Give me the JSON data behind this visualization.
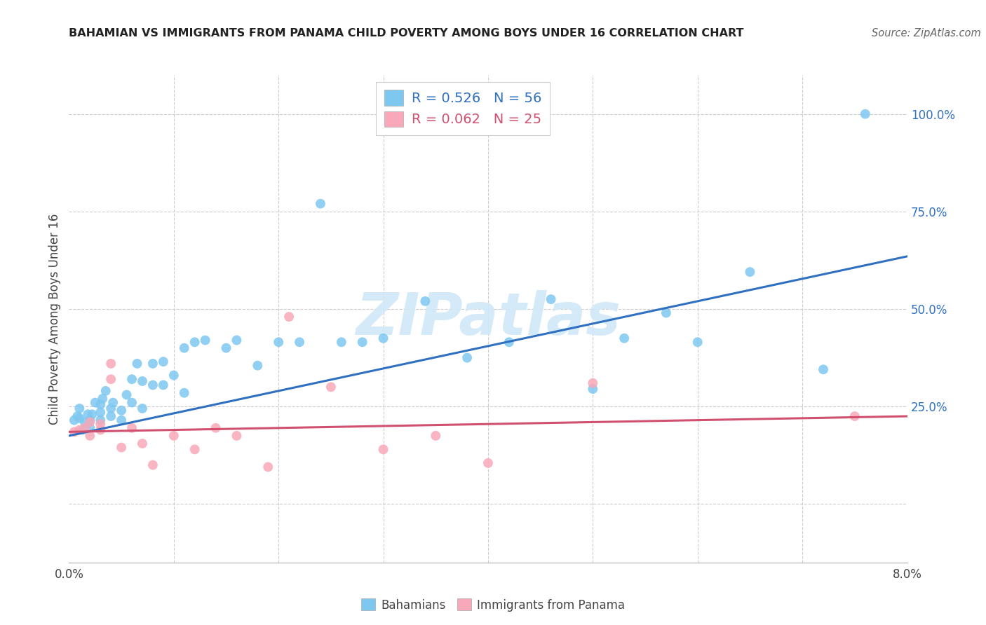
{
  "title": "BAHAMIAN VS IMMIGRANTS FROM PANAMA CHILD POVERTY AMONG BOYS UNDER 16 CORRELATION CHART",
  "source": "Source: ZipAtlas.com",
  "ylabel": "Child Poverty Among Boys Under 16",
  "color_blue": "#7EC8F0",
  "color_pink": "#F8A8B8",
  "trendline_blue": "#3070C0",
  "trendline_pink": "#D05070",
  "legend_label_blue": "R = 0.526   N = 56",
  "legend_label_pink": "R = 0.062   N = 25",
  "legend_text_blue": "#3070C0",
  "legend_text_pink": "#D05070",
  "watermark_color": "#D0E8F8",
  "xlim": [
    0.0,
    0.08
  ],
  "ylim": [
    -0.15,
    1.1
  ],
  "yticks": [
    0.0,
    0.25,
    0.5,
    0.75,
    1.0
  ],
  "ytick_labels": [
    "",
    "25.0%",
    "50.0%",
    "75.0%",
    "100.0%"
  ],
  "xtick_labels_show": [
    "0.0%",
    "8.0%"
  ],
  "trendline_blue_y0": 0.175,
  "trendline_blue_y1": 0.635,
  "trendline_pink_y0": 0.185,
  "trendline_pink_y1": 0.225,
  "bahamians_x": [
    0.0005,
    0.0008,
    0.001,
    0.001,
    0.0013,
    0.0015,
    0.0018,
    0.002,
    0.002,
    0.0022,
    0.0025,
    0.003,
    0.003,
    0.003,
    0.0032,
    0.0035,
    0.004,
    0.004,
    0.0042,
    0.005,
    0.005,
    0.0055,
    0.006,
    0.006,
    0.0065,
    0.007,
    0.007,
    0.008,
    0.008,
    0.009,
    0.009,
    0.01,
    0.011,
    0.011,
    0.012,
    0.013,
    0.015,
    0.016,
    0.018,
    0.02,
    0.022,
    0.024,
    0.026,
    0.028,
    0.03,
    0.034,
    0.038,
    0.042,
    0.046,
    0.05,
    0.053,
    0.057,
    0.06,
    0.065,
    0.072,
    0.076
  ],
  "bahamians_y": [
    0.215,
    0.225,
    0.22,
    0.245,
    0.19,
    0.21,
    0.23,
    0.195,
    0.215,
    0.23,
    0.26,
    0.215,
    0.235,
    0.255,
    0.27,
    0.29,
    0.225,
    0.245,
    0.26,
    0.215,
    0.24,
    0.28,
    0.26,
    0.32,
    0.36,
    0.245,
    0.315,
    0.305,
    0.36,
    0.305,
    0.365,
    0.33,
    0.4,
    0.285,
    0.415,
    0.42,
    0.4,
    0.42,
    0.355,
    0.415,
    0.415,
    0.77,
    0.415,
    0.415,
    0.425,
    0.52,
    0.375,
    0.415,
    0.525,
    0.295,
    0.425,
    0.49,
    0.415,
    0.595,
    0.345,
    1.0
  ],
  "panama_x": [
    0.0005,
    0.001,
    0.0015,
    0.002,
    0.002,
    0.003,
    0.003,
    0.004,
    0.004,
    0.005,
    0.006,
    0.007,
    0.008,
    0.01,
    0.012,
    0.014,
    0.016,
    0.019,
    0.021,
    0.025,
    0.03,
    0.035,
    0.04,
    0.05,
    0.075
  ],
  "panama_y": [
    0.185,
    0.19,
    0.195,
    0.175,
    0.21,
    0.19,
    0.205,
    0.32,
    0.36,
    0.145,
    0.195,
    0.155,
    0.1,
    0.175,
    0.14,
    0.195,
    0.175,
    0.095,
    0.48,
    0.3,
    0.14,
    0.175,
    0.105,
    0.31,
    0.225
  ]
}
